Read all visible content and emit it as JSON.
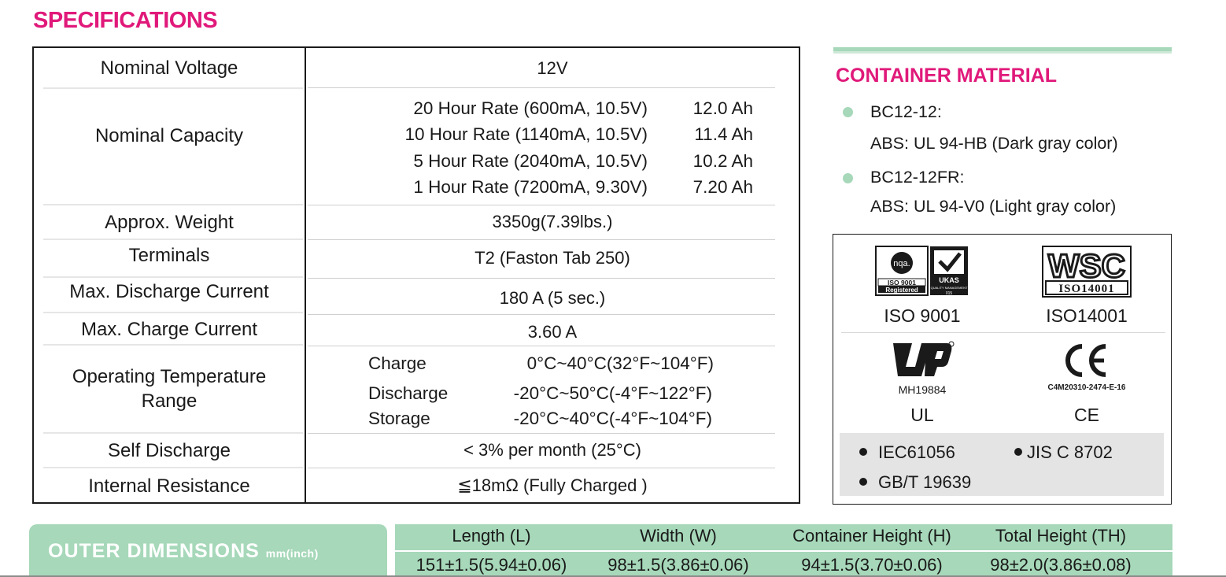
{
  "title": "SPECIFICATIONS",
  "specs": {
    "nominal_voltage": {
      "label": "Nominal Voltage",
      "value": "12V"
    },
    "nominal_capacity": {
      "label": "Nominal Capacity",
      "rates": [
        {
          "desc": "20 Hour Rate (600mA, 10.5V)",
          "value": "12.0 Ah"
        },
        {
          "desc": "10 Hour Rate (1140mA, 10.5V)",
          "value": "11.4 Ah"
        },
        {
          "desc": "5 Hour Rate (2040mA, 10.5V)",
          "value": "10.2 Ah"
        },
        {
          "desc": "1 Hour Rate (7200mA, 9.30V)",
          "value": "7.20 Ah"
        }
      ]
    },
    "weight": {
      "label": "Approx. Weight",
      "value": "3350g(7.39lbs.)"
    },
    "terminals": {
      "label": "Terminals",
      "value": "T2 (Faston Tab 250)"
    },
    "max_discharge": {
      "label": "Max. Discharge Current",
      "value": "180 A (5 sec.)"
    },
    "max_charge": {
      "label": "Max. Charge Current",
      "value": "3.60 A"
    },
    "operating_temp": {
      "label_line1": "Operating Temperature",
      "label_line2": "Range",
      "items": [
        {
          "key": "Charge",
          "value": "0°C~40°C(32°F~104°F)"
        },
        {
          "key": "Discharge",
          "value": "-20°C~50°C(-4°F~122°F)"
        },
        {
          "key": "Storage",
          "value": "-20°C~40°C(-4°F~104°F)"
        }
      ]
    },
    "self_discharge": {
      "label": "Self Discharge",
      "value": "< 3% per month (25°C)"
    },
    "internal_resistance": {
      "label": "Internal Resistance",
      "value": "≦18mΩ (Fully Charged )"
    }
  },
  "container_material": {
    "title": "CONTAINER MATERIAL",
    "items": [
      {
        "model": "BC12-12:",
        "material": "ABS: UL 94-HB  (Dark gray color)"
      },
      {
        "model": "BC12-12FR:",
        "material": "ABS: UL 94-V0 (Light gray color)"
      }
    ]
  },
  "certifications": {
    "iso9001": {
      "label": "ISO 9001",
      "logo_nqa": "nqa.",
      "logo_iso": "ISO 9001",
      "logo_reg": "Registered",
      "logo_ukas": "UKAS",
      "logo_ukas_sub": "QUALITY MANAGEMENT",
      "logo_num": "015"
    },
    "iso14001": {
      "label": "ISO14001",
      "logo_wsc": "WSC",
      "logo_iso": "ISO14001"
    },
    "ul": {
      "label": "UL",
      "code": "MH19884"
    },
    "ce": {
      "label": "CE",
      "code": "C4M20310-2474-E-16"
    },
    "standards": [
      "IEC61056",
      "JIS C 8702",
      "GB/T 19639"
    ]
  },
  "outer_dimensions": {
    "title": "OUTER DIMENSIONS",
    "unit": "mm(inch)",
    "headers": [
      "Length (L)",
      "Width (W)",
      "Container Height (H)",
      "Total Height (TH)"
    ],
    "values": [
      "151±1.5(5.94±0.06)",
      "98±1.5(3.86±0.06)",
      "94±1.5(3.70±0.06)",
      "98±2.0(3.86±0.08)"
    ]
  },
  "colors": {
    "accent": "#e0197a",
    "green": "#a6d8b9"
  }
}
